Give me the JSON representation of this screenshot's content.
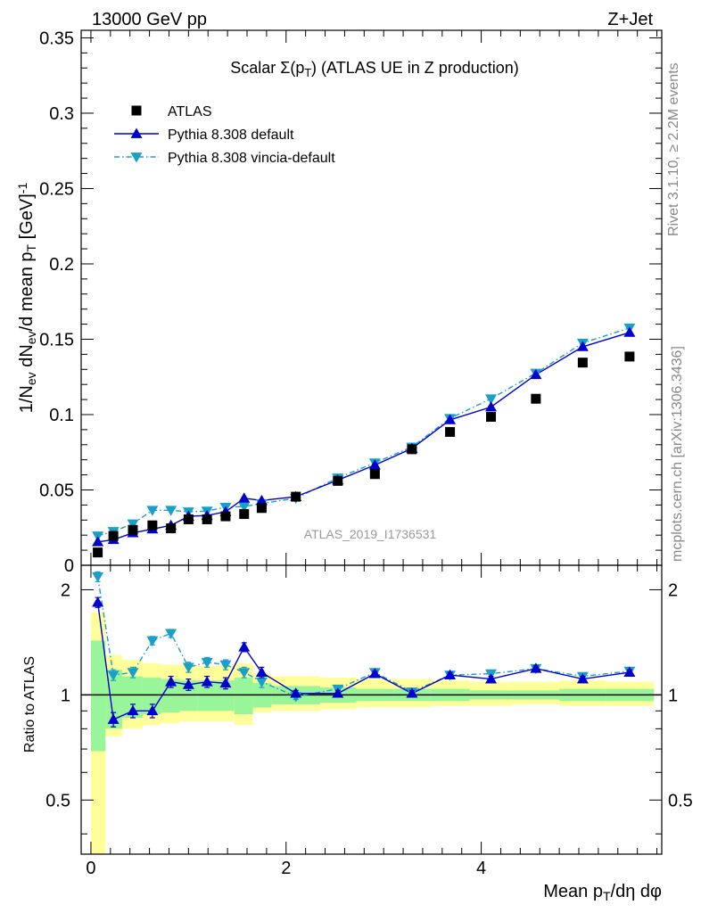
{
  "header": {
    "left": "13000 GeV pp",
    "right": "Z+Jet"
  },
  "side_labels": {
    "rivet": "Rivet 3.1.10, ≥ 2.2M events",
    "mcplots": "mcplots.cern.ch [arXiv:1306.3436]"
  },
  "colors": {
    "data": "#000000",
    "pythia_default": "#0000cc",
    "pythia_vincia": "#1aa0c8",
    "band_inner": "#99f599",
    "band_outer": "#ffff99"
  },
  "chart_data": [
    {
      "type": "scatter",
      "title": "Scalar Σ(p_T) (ATLAS UE in Z production)",
      "xlabel": "",
      "ylabel": "1/N_ev dN_ev/d mean p_T [GeV]^-1",
      "watermark": "ATLAS_2019_I1736531",
      "xlim": [
        -0.1,
        5.85
      ],
      "ylim": [
        0,
        0.355
      ],
      "yticks": [
        0,
        0.05,
        0.1,
        0.15,
        0.2,
        0.25,
        0.3,
        0.35
      ],
      "ytick_labels": [
        "0",
        "0.05",
        "0.1",
        "0.15",
        "0.2",
        "0.25",
        "0.3",
        "0.35"
      ],
      "legend_position": "top-left",
      "x": [
        0.07,
        0.23,
        0.43,
        0.63,
        0.82,
        1.0,
        1.19,
        1.38,
        1.57,
        1.75,
        2.1,
        2.53,
        2.91,
        3.29,
        3.68,
        4.1,
        4.56,
        5.04,
        5.52
      ],
      "series": [
        {
          "name": "ATLAS",
          "marker": "square",
          "values": [
            0.0085,
            0.0195,
            0.0235,
            0.0265,
            0.0245,
            0.0305,
            0.0305,
            0.0325,
            0.034,
            0.038,
            0.0455,
            0.056,
            0.0605,
            0.077,
            0.0885,
            0.0985,
            0.1105,
            0.1345,
            0.1385
          ]
        },
        {
          "name": "Pythia 8.308 default",
          "marker": "triangle-up",
          "values": [
            0.0155,
            0.017,
            0.0215,
            0.024,
            0.0265,
            0.0325,
            0.033,
            0.0355,
            0.0445,
            0.043,
            0.0455,
            0.0565,
            0.0665,
            0.0775,
            0.0965,
            0.105,
            0.1265,
            0.145,
            0.1545
          ]
        },
        {
          "name": "Pythia 8.308 vincia-default",
          "marker": "triangle-down",
          "values": [
            0.0195,
            0.0225,
            0.0275,
            0.0365,
            0.0365,
            0.0355,
            0.036,
            0.0385,
            0.039,
            0.041,
            0.0445,
            0.058,
            0.068,
            0.0785,
            0.0975,
            0.1105,
            0.1275,
            0.1475,
            0.1575
          ]
        }
      ]
    },
    {
      "type": "line",
      "xlabel": "Mean p_T/dη dφ",
      "ylabel": "Ratio to ATLAS",
      "xlim": [
        -0.1,
        5.85
      ],
      "ylim": [
        0.35,
        2.35
      ],
      "xticks": [
        0,
        2,
        4
      ],
      "xtick_labels": [
        "0",
        "2",
        "4"
      ],
      "yticks": [
        0.5,
        1,
        2
      ],
      "ytick_labels": [
        "0.5",
        "1",
        "2"
      ],
      "reference": 1,
      "x": [
        0.07,
        0.23,
        0.43,
        0.63,
        0.82,
        1.0,
        1.19,
        1.38,
        1.57,
        1.75,
        2.1,
        2.53,
        2.91,
        3.29,
        3.68,
        4.1,
        4.56,
        5.04,
        5.52
      ],
      "bin_edges": [
        0.0,
        0.15,
        0.32,
        0.53,
        0.72,
        0.91,
        1.09,
        1.28,
        1.47,
        1.66,
        1.85,
        2.35,
        2.72,
        3.1,
        3.48,
        3.88,
        4.32,
        4.8,
        5.28,
        5.77
      ],
      "band_inner": [
        [
          0.69,
          1.43
        ],
        [
          0.8,
          1.18
        ],
        [
          0.86,
          1.13
        ],
        [
          0.88,
          1.12
        ],
        [
          0.89,
          1.11
        ],
        [
          0.9,
          1.1
        ],
        [
          0.9,
          1.1
        ],
        [
          0.9,
          1.1
        ],
        [
          0.88,
          1.12
        ],
        [
          0.92,
          1.08
        ],
        [
          0.94,
          1.06
        ],
        [
          0.95,
          1.05
        ],
        [
          0.96,
          1.04
        ],
        [
          0.96,
          1.04
        ],
        [
          0.96,
          1.04
        ],
        [
          0.97,
          1.03
        ],
        [
          0.97,
          1.03
        ],
        [
          0.96,
          1.04
        ],
        [
          0.96,
          1.04
        ]
      ],
      "band_outer": [
        [
          0.35,
          1.72
        ],
        [
          0.76,
          1.3
        ],
        [
          0.8,
          1.26
        ],
        [
          0.82,
          1.23
        ],
        [
          0.83,
          1.22
        ],
        [
          0.84,
          1.22
        ],
        [
          0.84,
          1.21
        ],
        [
          0.84,
          1.21
        ],
        [
          0.82,
          1.23
        ],
        [
          0.89,
          1.15
        ],
        [
          0.9,
          1.13
        ],
        [
          0.91,
          1.12
        ],
        [
          0.92,
          1.11
        ],
        [
          0.92,
          1.11
        ],
        [
          0.93,
          1.1
        ],
        [
          0.93,
          1.09
        ],
        [
          0.94,
          1.09
        ],
        [
          0.93,
          1.1
        ],
        [
          0.93,
          1.09
        ]
      ],
      "series": [
        {
          "name": "Pythia 8.308 default",
          "values": [
            1.84,
            0.85,
            0.9,
            0.9,
            1.09,
            1.07,
            1.09,
            1.08,
            1.37,
            1.16,
            1.01,
            1.01,
            1.15,
            1.01,
            1.14,
            1.11,
            1.19,
            1.11,
            1.16
          ],
          "errors": [
            0.06,
            0.04,
            0.04,
            0.04,
            0.04,
            0.04,
            0.04,
            0.04,
            0.04,
            0.04,
            0.02,
            0.02,
            0.02,
            0.02,
            0.02,
            0.02,
            0.02,
            0.02,
            0.02
          ]
        },
        {
          "name": "Pythia 8.308 vincia-default",
          "values": [
            2.18,
            1.14,
            1.16,
            1.43,
            1.5,
            1.2,
            1.24,
            1.22,
            1.16,
            1.09,
            0.99,
            1.04,
            1.16,
            1.02,
            1.14,
            1.15,
            1.19,
            1.13,
            1.17
          ],
          "errors": [
            0.07,
            0.04,
            0.04,
            0.04,
            0.04,
            0.04,
            0.04,
            0.04,
            0.04,
            0.04,
            0.02,
            0.02,
            0.02,
            0.02,
            0.02,
            0.02,
            0.02,
            0.02,
            0.02
          ]
        }
      ]
    }
  ]
}
